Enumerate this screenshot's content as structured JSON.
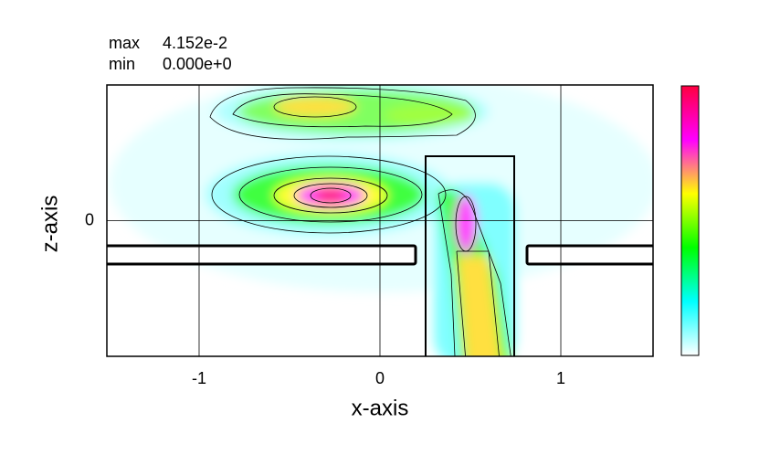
{
  "chart_data": {
    "type": "contour",
    "zmax": {
      "value": 0.04152,
      "label": "4.152e-2"
    },
    "zmin": {
      "value": 0,
      "label": "0.000e+0"
    },
    "max_text": "max",
    "min_text": "min",
    "xlabel": "x-axis",
    "ylabel": "z-axis",
    "xlim": [
      -1.51,
      1.51
    ],
    "ylim": [
      -0.75,
      0.75
    ],
    "xticks": [
      -1,
      0,
      1
    ],
    "yticks": [
      0
    ],
    "grid": true,
    "colormap": [
      "#ffffff",
      "#00ffff",
      "#00ff00",
      "#ffff00",
      "#ff00ff",
      "#ff0040"
    ]
  }
}
